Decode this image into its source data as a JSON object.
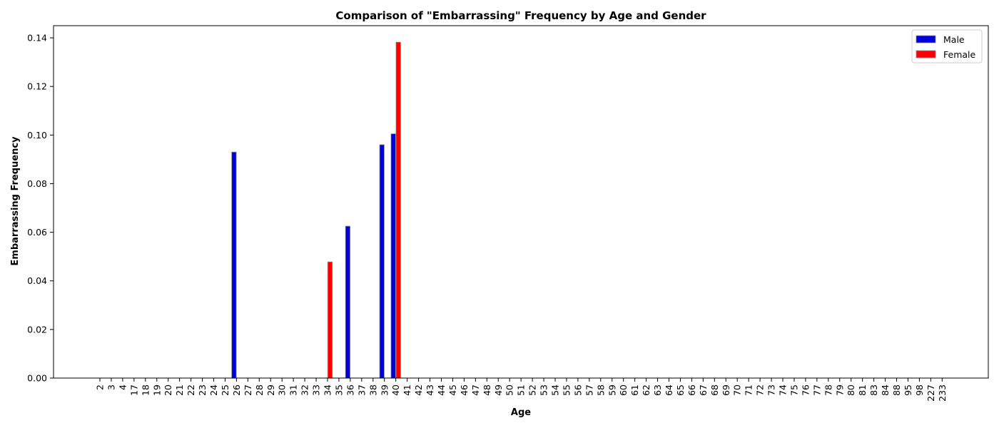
{
  "chart_data": {
    "type": "bar",
    "title": "Comparison of \"Embarrassing\" Frequency by Age and Gender",
    "xlabel": "Age",
    "ylabel": "Embarrassing Frequency",
    "ylim": [
      0,
      0.145
    ],
    "yticks": [
      "0.00",
      "0.02",
      "0.04",
      "0.06",
      "0.08",
      "0.10",
      "0.12",
      "0.14"
    ],
    "ytick_values": [
      0,
      0.02,
      0.04,
      0.06,
      0.08,
      0.1,
      0.12,
      0.14
    ],
    "grid": false,
    "legend_position": "top-right",
    "categories": [
      "2",
      "3",
      "4",
      "17",
      "18",
      "19",
      "20",
      "21",
      "22",
      "23",
      "24",
      "25",
      "26",
      "27",
      "28",
      "29",
      "30",
      "31",
      "32",
      "33",
      "34",
      "35",
      "36",
      "37",
      "38",
      "39",
      "40",
      "41",
      "42",
      "43",
      "44",
      "45",
      "46",
      "47",
      "48",
      "49",
      "50",
      "51",
      "52",
      "53",
      "54",
      "55",
      "56",
      "57",
      "58",
      "59",
      "60",
      "61",
      "62",
      "63",
      "64",
      "65",
      "66",
      "67",
      "68",
      "69",
      "70",
      "71",
      "72",
      "73",
      "74",
      "75",
      "76",
      "77",
      "78",
      "79",
      "80",
      "81",
      "83",
      "84",
      "88",
      "95",
      "98",
      "227",
      "233"
    ],
    "series": [
      {
        "name": "Male",
        "color": "#0000dd",
        "values": {
          "26": 0.093,
          "36": 0.0625,
          "39": 0.096,
          "40": 0.1005
        }
      },
      {
        "name": "Female",
        "color": "#ff0000",
        "values": {
          "34": 0.0478,
          "40": 0.1382
        }
      }
    ]
  }
}
